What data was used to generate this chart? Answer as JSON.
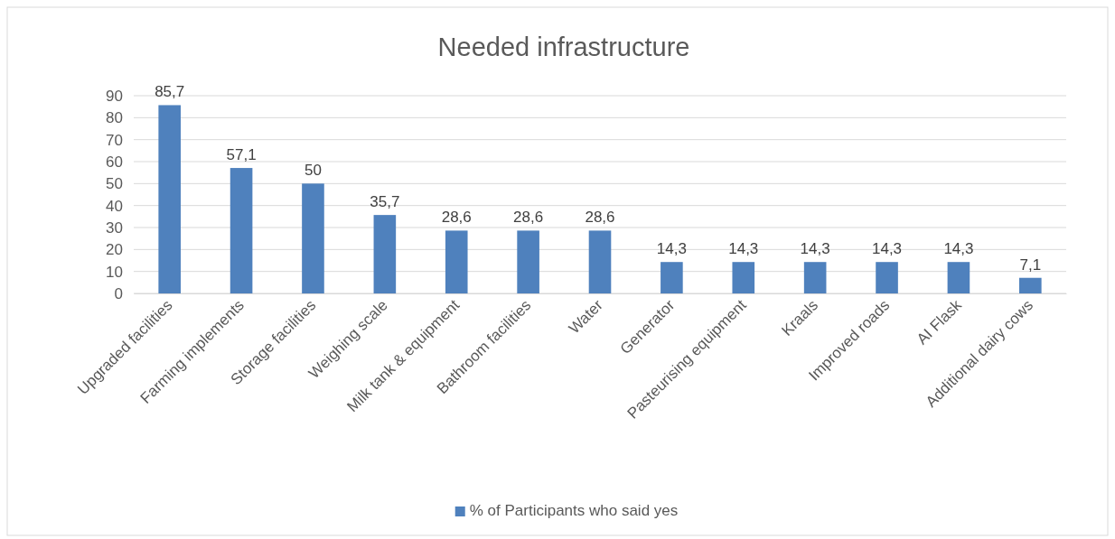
{
  "chart_data": {
    "type": "bar",
    "title": "Needed infrastructure",
    "categories": [
      "Upgraded facilities",
      "Farming implements",
      "Storage facilities",
      "Weighing scale",
      "Milk tank & equipment",
      "Bathroom facilities",
      "Water",
      "Generator",
      "Pasteurising equipment",
      "Kraals",
      "Improved roads",
      "AI Flask",
      "Additional dairy cows"
    ],
    "series": [
      {
        "name": "% of Participants who said yes",
        "color": "#4f81bd",
        "values": [
          85.7,
          57.1,
          50,
          35.7,
          28.6,
          28.6,
          28.6,
          14.3,
          14.3,
          14.3,
          14.3,
          14.3,
          7.1
        ],
        "value_labels": [
          "85,7",
          "57,1",
          "50",
          "35,7",
          "28,6",
          "28,6",
          "28,6",
          "14,3",
          "14,3",
          "14,3",
          "14,3",
          "14,3",
          "7,1"
        ]
      }
    ],
    "ylim": [
      0,
      90
    ],
    "yticks": [
      0,
      10,
      20,
      30,
      40,
      50,
      60,
      70,
      80,
      90
    ],
    "grid": "y",
    "legend": "bottom"
  }
}
